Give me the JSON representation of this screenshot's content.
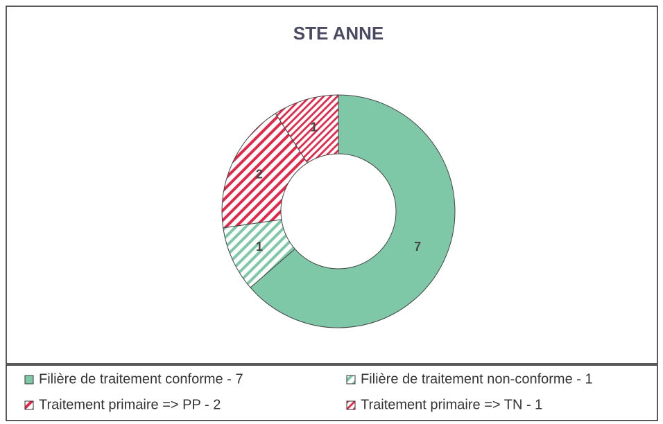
{
  "chart_data": {
    "type": "donut",
    "title": "STE ANNE",
    "categories": [
      "Filière de traitement conforme - 7",
      "Filière de traitement non-conforme - 1",
      "Traitement primaire => PP - 2",
      "Traitement primaire => TN - 1"
    ],
    "values": [
      7,
      1,
      2,
      1
    ],
    "colors": [
      "#7ec8a8",
      "#7ec8a8",
      "#e0284a",
      "#e0284a"
    ],
    "fills": [
      "solid",
      "hatch",
      "hatch",
      "dense-hatch"
    ]
  }
}
